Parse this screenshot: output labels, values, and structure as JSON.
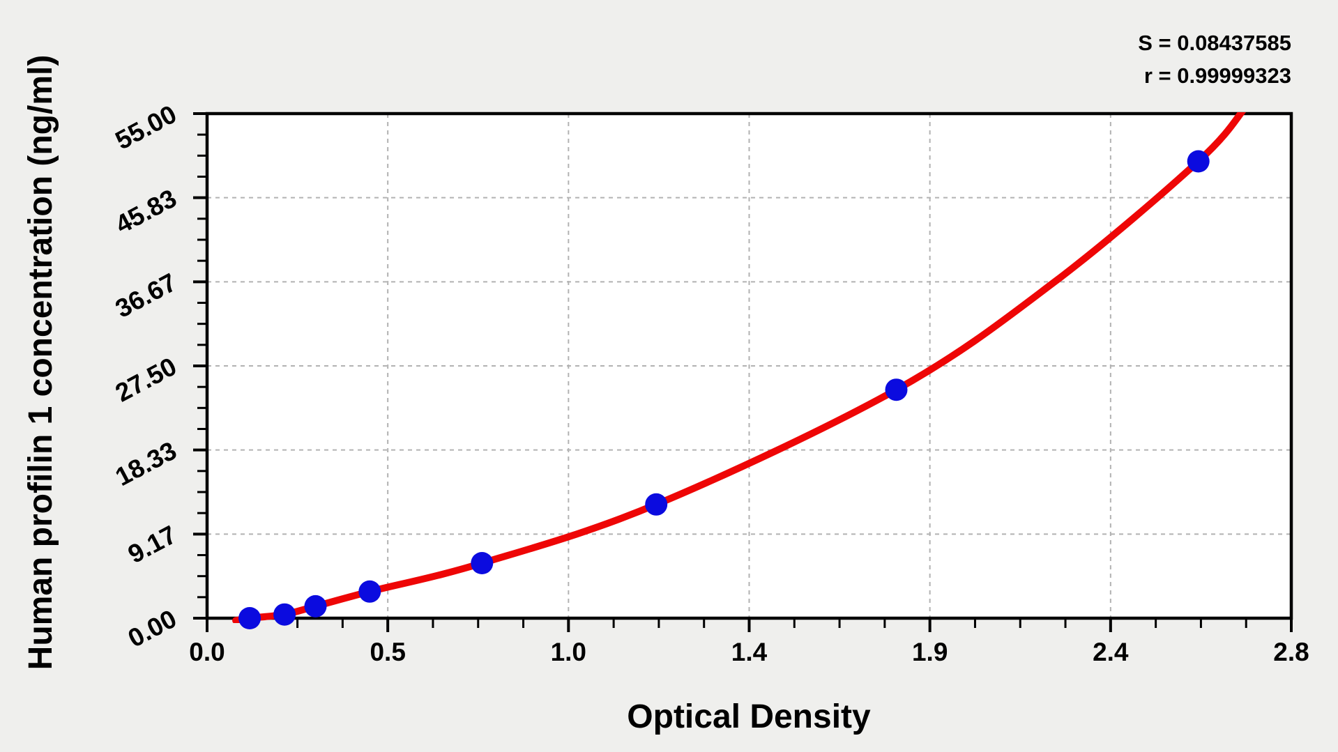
{
  "page": {
    "background_color": "#efefed",
    "plot_background_color": "#ffffff"
  },
  "chart_data": {
    "type": "scatter",
    "title": "",
    "xlabel": "Optical Density",
    "ylabel": "Human profilin 1 concentration (ng/ml)",
    "stats_lines": [
      "S = 0.08437585",
      "r = 0.99999323"
    ],
    "stats": {
      "S": "0.08437585",
      "r": "0.99999323"
    },
    "xlim": [
      0,
      2.8
    ],
    "ylim": [
      0,
      55
    ],
    "x_tick_labels": [
      "0.0",
      "0.5",
      "1.0",
      "1.4",
      "1.9",
      "2.4",
      "2.8"
    ],
    "y_tick_labels": [
      "0.00",
      "9.17",
      "18.33",
      "27.50",
      "36.67",
      "45.83",
      "55.00"
    ],
    "minor_ticks_per_division": 4,
    "grid": {
      "enabled": true,
      "style": "dashed",
      "at": "major-ticks"
    },
    "legend": {
      "visible": false
    },
    "series": [
      {
        "name": "standard points",
        "type": "scatter",
        "marker": "circle",
        "x_field": "optical_density",
        "y_field": "concentration_ng_ml",
        "points": [
          {
            "od": 0.11,
            "conc": 0.0
          },
          {
            "od": 0.2,
            "conc": 0.4
          },
          {
            "od": 0.28,
            "conc": 1.3
          },
          {
            "od": 0.42,
            "conc": 2.9
          },
          {
            "od": 0.71,
            "conc": 6.0
          },
          {
            "od": 1.16,
            "conc": 12.4
          },
          {
            "od": 1.78,
            "conc": 24.9
          },
          {
            "od": 2.56,
            "conc": 49.8
          }
        ]
      },
      {
        "name": "fitted curve",
        "type": "line",
        "points": [
          {
            "od": 0.074,
            "conc": -0.25
          },
          {
            "od": 0.11,
            "conc": 0.0
          },
          {
            "od": 0.2,
            "conc": 0.42
          },
          {
            "od": 0.28,
            "conc": 1.3
          },
          {
            "od": 0.42,
            "conc": 2.9
          },
          {
            "od": 0.71,
            "conc": 6.0
          },
          {
            "od": 1.16,
            "conc": 12.4
          },
          {
            "od": 1.78,
            "conc": 24.9
          },
          {
            "od": 2.19,
            "conc": 36.7
          },
          {
            "od": 2.56,
            "conc": 49.8
          },
          {
            "od": 2.68,
            "conc": 55.6
          }
        ]
      }
    ],
    "colors": {
      "point": "#0b0bdf",
      "curve": "#ee0606",
      "grid": "#b2b2b2",
      "frame": "#000000",
      "tick": "#000000",
      "text": "#000000"
    }
  }
}
